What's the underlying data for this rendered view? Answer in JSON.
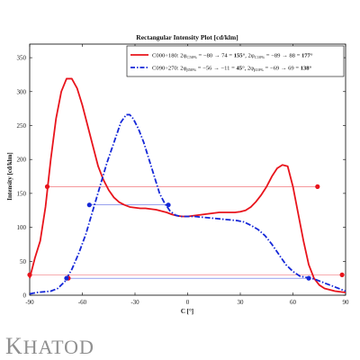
{
  "chart_data": {
    "type": "line",
    "title": "Rectangular Intensity Plot [cd/klm]",
    "xlabel": "C [°]",
    "ylabel": "Intensity [cd/klm]",
    "xlim": [
      -90,
      90
    ],
    "ylim": [
      0,
      370
    ],
    "xticks": [
      -90,
      -60,
      -30,
      0,
      30,
      60,
      90
    ],
    "yticks": [
      0,
      50,
      100,
      150,
      200,
      250,
      300,
      350
    ],
    "grid": false,
    "legend_position": "top-right",
    "series": [
      {
        "name": "C000÷180",
        "legend_parts": [
          {
            "t": "C000÷180: 2φ",
            "s": "normal"
          },
          {
            "t": "C50%",
            "s": "sub"
          },
          {
            "t": " = −80 → 74 = ",
            "s": "normal"
          },
          {
            "t": "155°",
            "s": "bold"
          },
          {
            "t": ", 2φ",
            "s": "normal"
          },
          {
            "t": "C10%",
            "s": "sub"
          },
          {
            "t": " = −89 → 88 = ",
            "s": "normal"
          },
          {
            "t": "177°",
            "s": "bold"
          }
        ],
        "color": "#e8141c",
        "dash": "solid",
        "x": [
          -90,
          -87,
          -84,
          -81,
          -78,
          -75,
          -72,
          -69,
          -66,
          -63,
          -60,
          -57,
          -54,
          -51,
          -48,
          -45,
          -42,
          -39,
          -36,
          -33,
          -30,
          -27,
          -24,
          -21,
          -18,
          -15,
          -12,
          -9,
          -6,
          -3,
          0,
          3,
          6,
          9,
          12,
          15,
          18,
          21,
          24,
          27,
          30,
          33,
          36,
          39,
          42,
          45,
          48,
          51,
          54,
          57,
          60,
          63,
          66,
          69,
          72,
          75,
          78,
          81,
          84,
          87,
          90
        ],
        "y": [
          25,
          55,
          80,
          130,
          200,
          260,
          300,
          319,
          319,
          305,
          280,
          250,
          220,
          190,
          170,
          155,
          144,
          137,
          133,
          130,
          129,
          128,
          128,
          127,
          126,
          124,
          122,
          119,
          117,
          116,
          116,
          117,
          118,
          119,
          120,
          121,
          122,
          122,
          122,
          122,
          123,
          125,
          130,
          138,
          148,
          160,
          175,
          187,
          192,
          190,
          160,
          120,
          80,
          45,
          25,
          15,
          10,
          8,
          6,
          5,
          4
        ],
        "markers": [
          [
            -90,
            30
          ],
          [
            -80,
            160
          ],
          [
            -68,
            25
          ],
          [
            74,
            160
          ],
          [
            88,
            30
          ]
        ],
        "guides": [
          {
            "y": 160,
            "x1": -80,
            "x2": 74
          },
          {
            "y": 30,
            "x1": -89,
            "x2": 88
          }
        ]
      },
      {
        "name": "C090÷270",
        "legend_parts": [
          {
            "t": "C090÷270: 2φ",
            "s": "normal"
          },
          {
            "t": "β50%",
            "s": "sub"
          },
          {
            "t": " = −56 → −11 = ",
            "s": "normal"
          },
          {
            "t": "45°",
            "s": "bold"
          },
          {
            "t": ", 2φ",
            "s": "normal"
          },
          {
            "t": "β10%",
            "s": "sub"
          },
          {
            "t": " = −69 → 69 = ",
            "s": "normal"
          },
          {
            "t": "138°",
            "s": "bold"
          }
        ],
        "color": "#1528d8",
        "dash": "dashdot",
        "x": [
          -90,
          -86,
          -82,
          -78,
          -74,
          -70,
          -66,
          -62,
          -58,
          -54,
          -50,
          -46,
          -42,
          -38,
          -35,
          -33,
          -31,
          -28,
          -25,
          -22,
          -19,
          -16,
          -13,
          -10,
          -7,
          -4,
          0,
          4,
          8,
          12,
          16,
          20,
          24,
          28,
          32,
          36,
          40,
          44,
          48,
          52,
          56,
          60,
          64,
          68,
          72,
          76,
          80,
          84,
          88,
          90
        ],
        "y": [
          2,
          4,
          5,
          6,
          10,
          20,
          38,
          62,
          90,
          125,
          160,
          195,
          225,
          255,
          266,
          266,
          260,
          245,
          225,
          200,
          175,
          150,
          135,
          124,
          118,
          116,
          116,
          116,
          115,
          114,
          113,
          112,
          111,
          110,
          108,
          103,
          97,
          88,
          75,
          60,
          45,
          35,
          28,
          26,
          24,
          20,
          16,
          12,
          8,
          6
        ],
        "markers": [
          [
            -69,
            25
          ],
          [
            -56,
            133
          ],
          [
            -11,
            133
          ],
          [
            69,
            25
          ]
        ],
        "guides": [
          {
            "y": 133,
            "x1": -56,
            "x2": -11
          },
          {
            "y": 25,
            "x1": -69,
            "x2": 69
          }
        ]
      }
    ]
  },
  "brand": {
    "logo_first": "K",
    "logo_rest": "HATOD"
  }
}
